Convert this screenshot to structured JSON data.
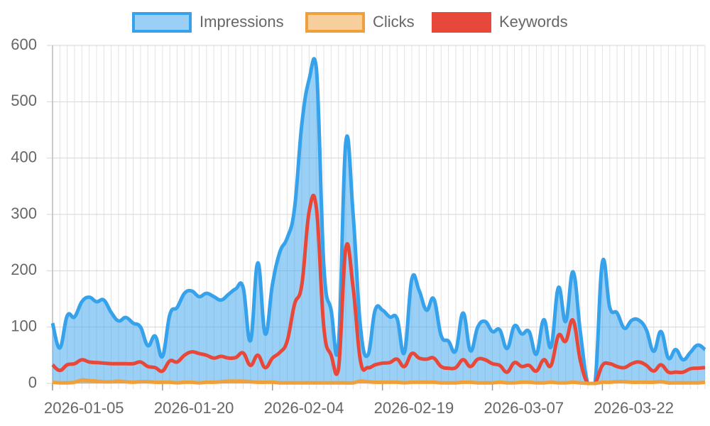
{
  "chart_data": {
    "type": "line",
    "categories": [
      "2026-01-05",
      null,
      null,
      null,
      null,
      null,
      null,
      null,
      null,
      null,
      null,
      null,
      null,
      null,
      null,
      "2026-01-20",
      null,
      null,
      null,
      null,
      null,
      null,
      null,
      null,
      null,
      null,
      null,
      null,
      null,
      null,
      "2026-02-04",
      null,
      null,
      null,
      null,
      null,
      null,
      null,
      null,
      null,
      null,
      null,
      null,
      null,
      null,
      "2026-02-19",
      null,
      null,
      null,
      null,
      null,
      null,
      null,
      null,
      null,
      null,
      null,
      null,
      null,
      null,
      "2026-03-07",
      null,
      null,
      null,
      null,
      null,
      null,
      null,
      null,
      null,
      null,
      null,
      null,
      null,
      null,
      "2026-03-22",
      null,
      null,
      null,
      null,
      null,
      null,
      null,
      null,
      null,
      null,
      null,
      null,
      null,
      null
    ],
    "series": [
      {
        "name": "Impressions",
        "color": "#36a2eb",
        "fill": "rgba(54,162,235,0.5)",
        "values": [
          107,
          63,
          120,
          118,
          145,
          153,
          145,
          148,
          126,
          111,
          117,
          107,
          100,
          67,
          84,
          48,
          122,
          135,
          160,
          164,
          154,
          160,
          154,
          148,
          158,
          168,
          170,
          76,
          214,
          88,
          176,
          233,
          258,
          310,
          460,
          540,
          558,
          210,
          130,
          70,
          428,
          300,
          100,
          50,
          130,
          130,
          118,
          115,
          55,
          185,
          165,
          130,
          150,
          85,
          75,
          58,
          125,
          58,
          100,
          110,
          92,
          95,
          62,
          102,
          88,
          92,
          52,
          113,
          65,
          170,
          110,
          198,
          90,
          0,
          0,
          215,
          135,
          125,
          98,
          112,
          112,
          95,
          57,
          92,
          45,
          60,
          42,
          55,
          68,
          60
        ]
      },
      {
        "name": "Clicks",
        "color": "#f0a03a",
        "fill": "rgba(240,160,58,0.5)",
        "values": [
          2,
          1,
          1,
          2,
          6,
          5,
          4,
          3,
          3,
          4,
          3,
          2,
          3,
          3,
          2,
          2,
          2,
          1,
          2,
          2,
          1,
          2,
          2,
          3,
          4,
          4,
          4,
          3,
          2,
          2,
          2,
          1,
          1,
          1,
          1,
          1,
          1,
          1,
          1,
          1,
          1,
          1,
          4,
          3,
          2,
          2,
          2,
          2,
          1,
          2,
          2,
          2,
          2,
          1,
          1,
          1,
          2,
          2,
          1,
          1,
          1,
          2,
          1,
          1,
          2,
          2,
          1,
          1,
          2,
          1,
          1,
          2,
          1,
          0,
          0,
          2,
          2,
          3,
          3,
          2,
          2,
          2,
          2,
          3,
          1,
          1,
          1,
          1,
          1,
          2
        ]
      },
      {
        "name": "Keywords",
        "color": "#e8483a",
        "values": [
          33,
          23,
          33,
          35,
          42,
          38,
          37,
          36,
          35,
          35,
          35,
          35,
          38,
          30,
          28,
          22,
          40,
          38,
          50,
          56,
          53,
          50,
          45,
          48,
          45,
          46,
          54,
          32,
          50,
          28,
          45,
          55,
          75,
          140,
          175,
          305,
          310,
          100,
          50,
          25,
          240,
          170,
          40,
          28,
          33,
          36,
          37,
          43,
          30,
          53,
          45,
          43,
          45,
          30,
          27,
          28,
          42,
          30,
          43,
          42,
          35,
          32,
          20,
          37,
          30,
          32,
          22,
          42,
          32,
          85,
          75,
          112,
          40,
          0,
          0,
          32,
          35,
          30,
          28,
          35,
          38,
          32,
          22,
          33,
          20,
          20,
          20,
          26,
          27,
          28
        ]
      }
    ],
    "ylim": [
      0,
      600
    ],
    "yticks": [
      0,
      100,
      200,
      300,
      400,
      500,
      600
    ],
    "grid": true,
    "legend": "top"
  }
}
